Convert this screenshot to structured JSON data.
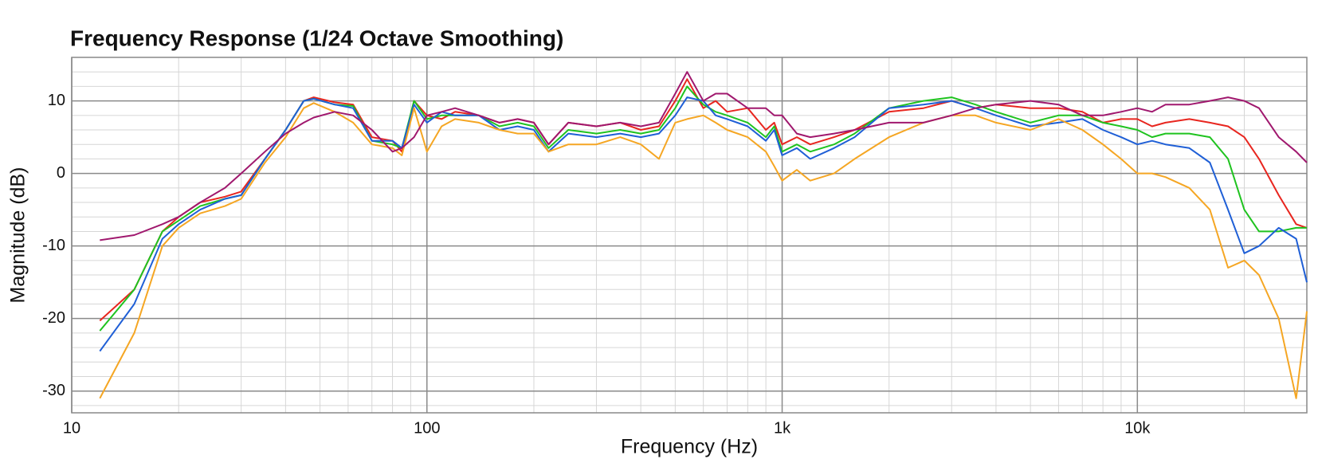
{
  "chart_data": {
    "type": "line",
    "title": "Frequency Response (1/24 Octave Smoothing)",
    "xlabel": "Frequency (Hz)",
    "ylabel": "Magnitude (dB)",
    "xscale": "log",
    "grid": true,
    "xlim": [
      10,
      30000
    ],
    "ylim": [
      -33,
      16
    ],
    "xticks": [
      10,
      100,
      {
        "value": 1000,
        "label": "1k"
      },
      {
        "value": 10000,
        "label": "10k"
      }
    ],
    "yticks": [
      -30,
      -20,
      -10,
      0,
      10
    ],
    "minor_xticks": [
      20,
      30,
      40,
      50,
      60,
      70,
      80,
      90,
      200,
      300,
      400,
      500,
      600,
      700,
      800,
      900,
      2000,
      3000,
      4000,
      5000,
      6000,
      7000,
      8000,
      9000,
      20000
    ],
    "minor_yticks": [
      -32,
      -28,
      -26,
      -24,
      -22,
      -18,
      -16,
      -14,
      -12,
      -8,
      -6,
      -4,
      -2,
      2,
      4,
      6,
      8,
      12,
      14,
      16
    ],
    "x": [
      12,
      15,
      18,
      20,
      23,
      27,
      30,
      35,
      40,
      45,
      48,
      55,
      62,
      70,
      80,
      85,
      92,
      100,
      110,
      120,
      140,
      160,
      180,
      200,
      220,
      250,
      300,
      350,
      400,
      450,
      500,
      540,
      600,
      650,
      700,
      800,
      900,
      950,
      1000,
      1100,
      1200,
      1400,
      1600,
      2000,
      2500,
      3000,
      3500,
      4000,
      5000,
      6000,
      7000,
      8000,
      9000,
      10000,
      11000,
      12000,
      14000,
      16000,
      18000,
      20000,
      22000,
      25000,
      28000,
      30000
    ],
    "series": [
      {
        "color": "#e8261f",
        "values": [
          -20.3,
          -16,
          -8,
          -6,
          -4,
          -3.2,
          -2.5,
          2,
          6,
          10,
          10.5,
          9.8,
          9.5,
          5,
          4.5,
          3,
          10,
          8,
          7.5,
          8.5,
          8,
          7,
          7.5,
          7,
          4,
          7,
          6.5,
          7,
          6,
          6.5,
          10,
          13,
          9,
          10,
          8.5,
          9,
          6,
          7,
          4,
          5,
          4,
          5,
          6,
          8.5,
          9,
          10,
          9,
          9.5,
          9,
          9,
          8.5,
          7,
          7.5,
          7.5,
          6.5,
          7,
          7.5,
          7,
          6.5,
          5,
          2,
          -3,
          -7,
          -7.5
        ]
      },
      {
        "color": "#1fc31f",
        "values": [
          -21.7,
          -16,
          -8,
          -6.5,
          -4.5,
          -3.5,
          -3,
          2,
          6,
          10,
          10.3,
          9.5,
          9.3,
          4.5,
          4,
          3.5,
          10,
          7.5,
          8,
          8,
          8,
          6.5,
          7,
          6.5,
          3.5,
          6,
          5.5,
          6,
          5.5,
          6,
          9,
          12,
          9.5,
          8.5,
          8,
          7,
          5,
          6.5,
          3,
          4,
          3,
          4,
          5.5,
          9,
          10,
          10.5,
          9.5,
          8.5,
          7,
          8,
          8,
          7,
          6.5,
          6,
          5,
          5.5,
          5.5,
          5,
          2,
          -5,
          -8,
          -8,
          -7.5,
          -7.5
        ]
      },
      {
        "color": "#1f5fd6",
        "values": [
          -24.5,
          -18,
          -9,
          -7,
          -5,
          -3.5,
          -3,
          2,
          6,
          10,
          10.3,
          9.5,
          9,
          4.5,
          4.5,
          3.5,
          9.5,
          7,
          8.5,
          8,
          8,
          6,
          6.5,
          6,
          3,
          5.5,
          5,
          5.5,
          5,
          5.5,
          8,
          10.5,
          10,
          8,
          7.5,
          6.5,
          4.5,
          6,
          2.5,
          3.5,
          2,
          3.5,
          5,
          9,
          9.5,
          10,
          9,
          8,
          6.5,
          7,
          7.5,
          6,
          5,
          4,
          4.5,
          4,
          3.5,
          1.5,
          -5,
          -11,
          -10,
          -7.5,
          -9,
          -15
        ]
      },
      {
        "color": "#f5a623",
        "values": [
          -31,
          -22,
          -10,
          -7.5,
          -5.5,
          -4.5,
          -3.5,
          1.5,
          5,
          9,
          9.7,
          8.5,
          7,
          4,
          3.5,
          2.5,
          9,
          3,
          6.5,
          7.5,
          7,
          6,
          5.5,
          5.5,
          3,
          4,
          4,
          5,
          4,
          2,
          7,
          7.5,
          8,
          7,
          6,
          5,
          3,
          1,
          -1,
          0.5,
          -1,
          0,
          2,
          5,
          7,
          8,
          8,
          7,
          6,
          7.5,
          6,
          4,
          2,
          0,
          0,
          -0.5,
          -2,
          -5,
          -13,
          -12,
          -14,
          -20,
          -31,
          -19
        ]
      },
      {
        "color": "#a0186e",
        "values": [
          -9.2,
          -8.5,
          -7,
          -6,
          -4,
          -2,
          0,
          3,
          5.5,
          7,
          7.7,
          8.5,
          8,
          6,
          3,
          3.5,
          5,
          8,
          8.5,
          9,
          8,
          7,
          7.5,
          7,
          4,
          7,
          6.5,
          7,
          6.5,
          7,
          11,
          14,
          10,
          11,
          11,
          9,
          9,
          8,
          8,
          5.5,
          5,
          5.5,
          6,
          7,
          7,
          8,
          9,
          9.5,
          10,
          9.5,
          8,
          8,
          8.5,
          9,
          8.5,
          9.5,
          9.5,
          10,
          10.5,
          10,
          9,
          5,
          3,
          1.5
        ]
      }
    ]
  }
}
